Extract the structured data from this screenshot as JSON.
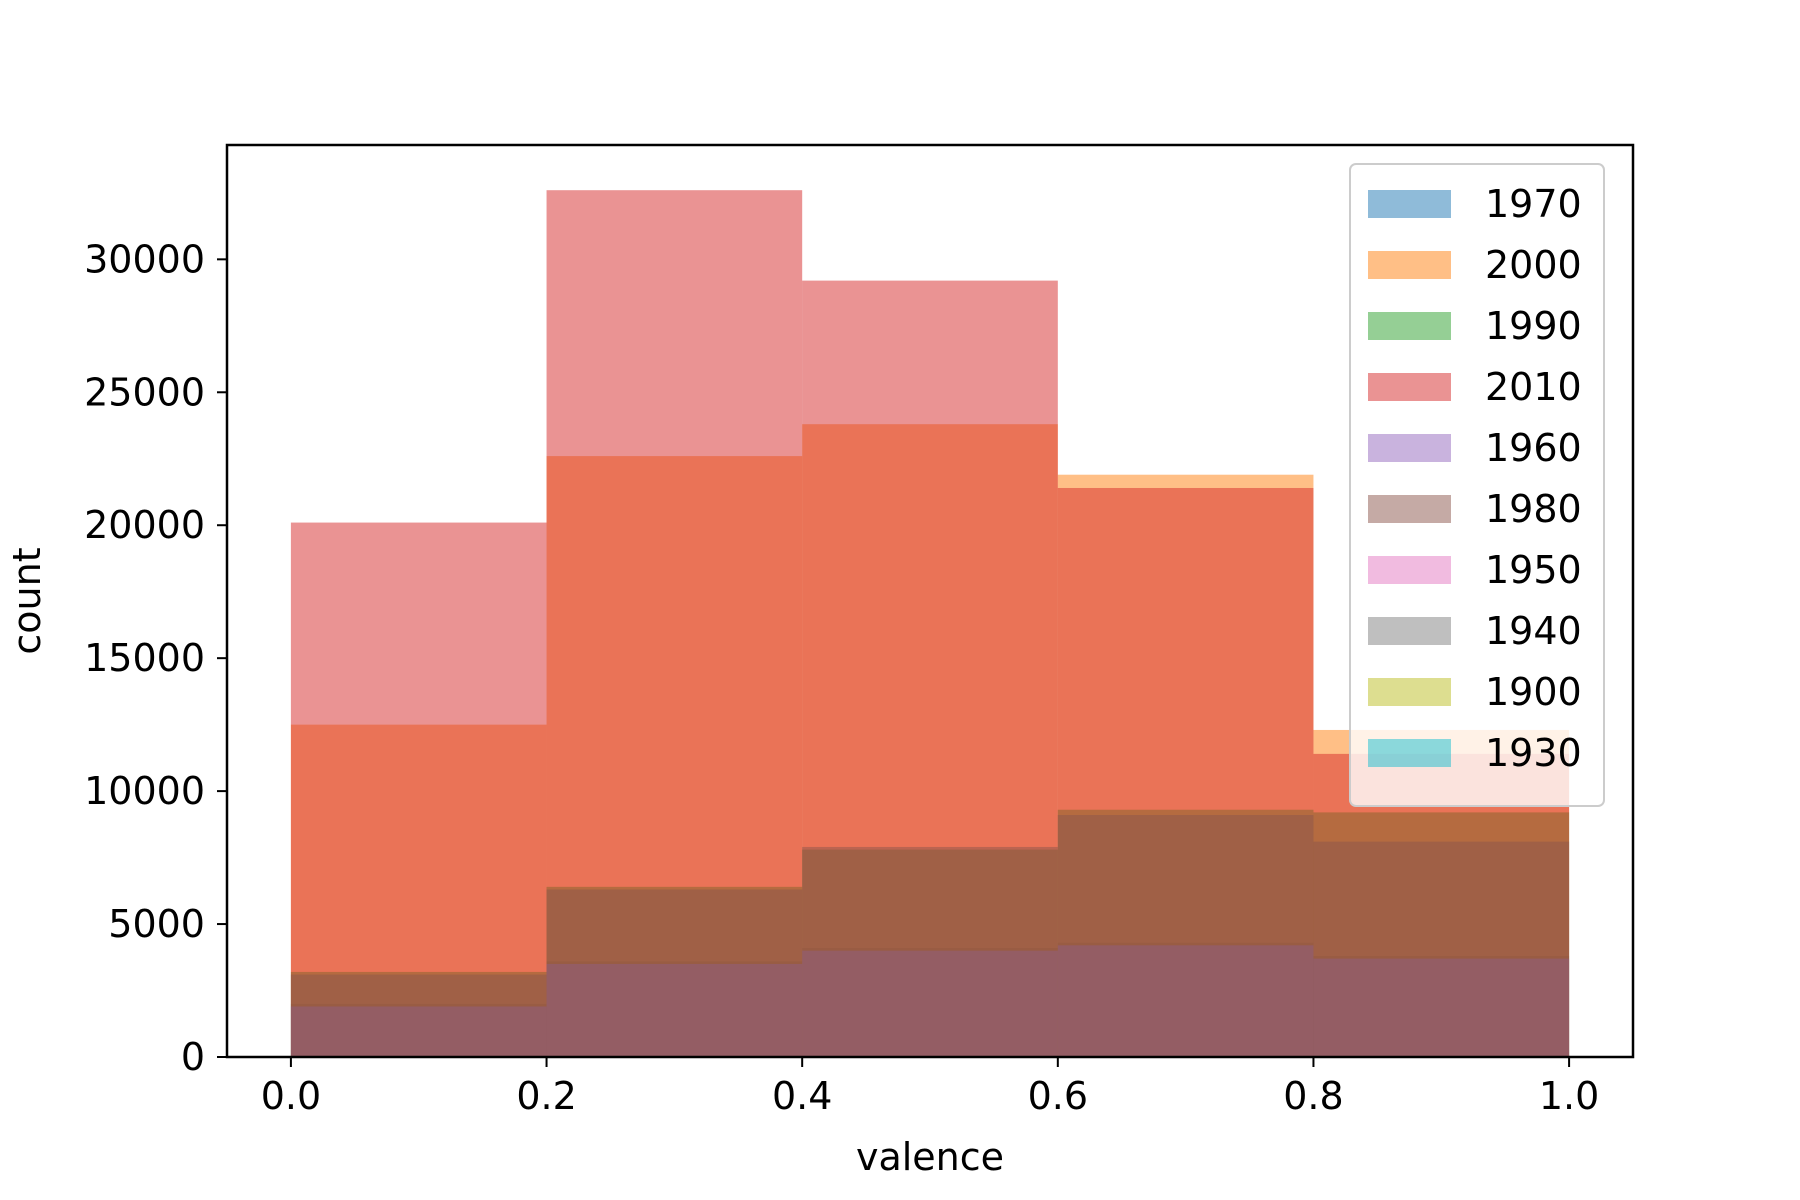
{
  "chart_data": {
    "type": "bar",
    "subtype": "overlaid-histogram",
    "xlabel": "valence",
    "ylabel": "count",
    "bin_edges": [
      0.0,
      0.2,
      0.4,
      0.6,
      0.8,
      1.0
    ],
    "xlim": [
      -0.05,
      1.05
    ],
    "ylim": [
      0,
      34300
    ],
    "x_ticks": [
      0.0,
      0.2,
      0.4,
      0.6,
      0.8,
      1.0
    ],
    "x_tick_labels": [
      "0.0",
      "0.2",
      "0.4",
      "0.6",
      "0.8",
      "1.0"
    ],
    "y_ticks": [
      0,
      5000,
      10000,
      15000,
      20000,
      25000,
      30000
    ],
    "y_tick_labels": [
      "0",
      "5000",
      "10000",
      "15000",
      "20000",
      "25000",
      "30000"
    ],
    "grid": false,
    "legend_position": "top-right",
    "bar_opacity": 0.5,
    "series": [
      {
        "name": "1970",
        "color": "#1f77b4",
        "values": [
          2000,
          3600,
          4100,
          4300,
          3800
        ]
      },
      {
        "name": "2000",
        "color": "#ff7f0e",
        "values": [
          12500,
          22600,
          23800,
          21900,
          12300
        ]
      },
      {
        "name": "1990",
        "color": "#2ca02c",
        "values": [
          3200,
          6400,
          7800,
          9300,
          9200
        ]
      },
      {
        "name": "2010",
        "color": "#d62728",
        "values": [
          20100,
          32600,
          29200,
          21400,
          11400
        ]
      },
      {
        "name": "1960",
        "color": "#9467bd",
        "values": [
          1900,
          3500,
          4000,
          4200,
          3700
        ]
      },
      {
        "name": "1980",
        "color": "#8c564b",
        "values": [
          3100,
          6300,
          7900,
          9100,
          8100
        ]
      },
      {
        "name": "1950",
        "color": "#e377c2",
        "values": [
          0,
          0,
          0,
          0,
          0
        ]
      },
      {
        "name": "1940",
        "color": "#7f7f7f",
        "values": [
          0,
          0,
          0,
          0,
          0
        ]
      },
      {
        "name": "1900",
        "color": "#bcbd22",
        "values": [
          0,
          0,
          0,
          0,
          0
        ]
      },
      {
        "name": "1930",
        "color": "#17becf",
        "values": [
          0,
          0,
          0,
          0,
          0
        ]
      }
    ]
  }
}
